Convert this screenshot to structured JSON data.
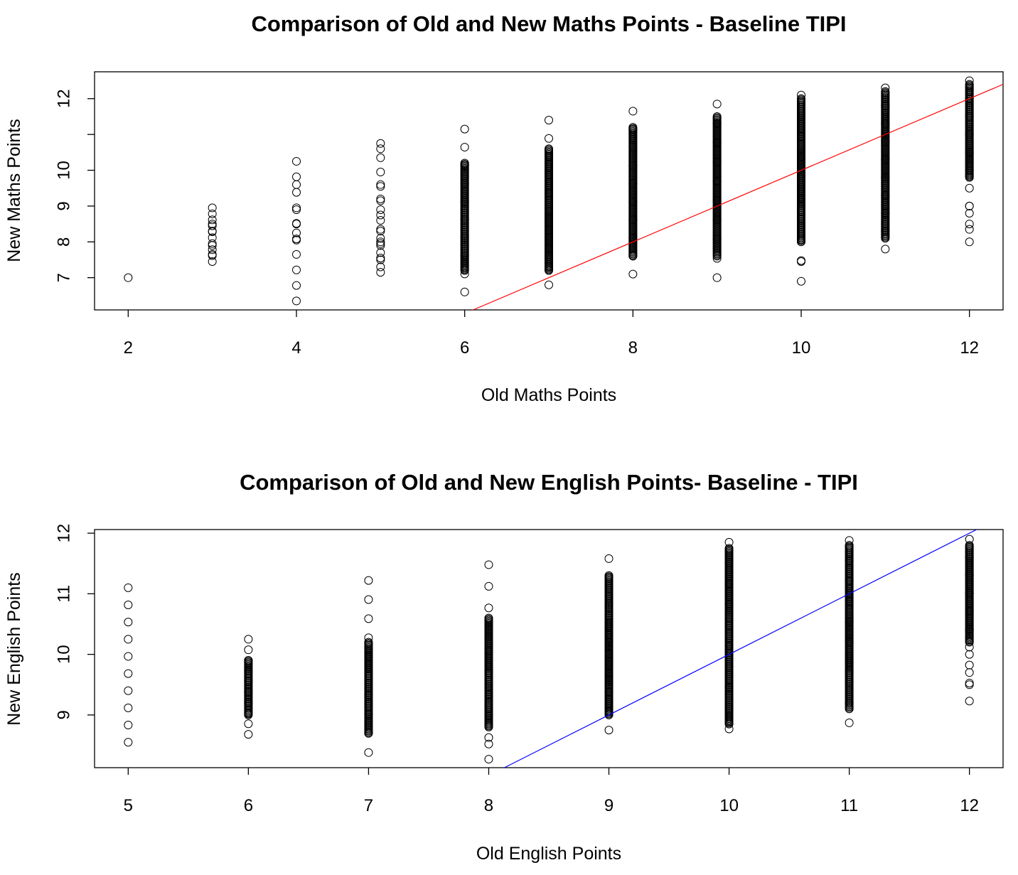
{
  "chart_data": [
    {
      "id": "maths",
      "type": "scatter",
      "title": "Comparison of Old and New Maths Points - Baseline TIPI",
      "xlabel": "Old Maths Points",
      "ylabel": "New Maths Points",
      "xlim": [
        1.6,
        12.4
      ],
      "ylim": [
        6.1,
        12.75
      ],
      "xticks": [
        2,
        4,
        6,
        8,
        10,
        12
      ],
      "yticks": [
        7,
        8,
        9,
        10,
        11,
        12
      ],
      "ytick_labels": [
        "7",
        "8",
        "9",
        "10",
        "",
        "12"
      ],
      "reference_line": {
        "slope": 1,
        "intercept": 0,
        "color": "#ff0000"
      },
      "point_color": "#000000",
      "x": [
        2,
        3,
        4,
        5,
        6,
        7,
        8,
        9,
        10,
        11,
        12
      ],
      "y_ranges": [
        [
          7.0,
          7.0
        ],
        [
          7.45,
          8.95
        ],
        [
          6.35,
          10.25
        ],
        [
          7.15,
          10.75
        ],
        [
          6.6,
          11.15
        ],
        [
          6.8,
          11.4
        ],
        [
          7.1,
          11.65
        ],
        [
          7.0,
          11.85
        ],
        [
          6.9,
          12.1
        ],
        [
          7.8,
          12.3
        ],
        [
          8.0,
          12.5
        ]
      ],
      "y_extra_points": [
        [],
        [
          8.3,
          8.5,
          7.9,
          7.65
        ],
        [
          8.05,
          8.25,
          8.5,
          8.9,
          9.6
        ],
        [
          7.3,
          7.5,
          7.7,
          7.9,
          8.0,
          8.1,
          8.3,
          8.6,
          8.9,
          9.2,
          9.6,
          10.6
        ],
        [],
        [],
        [],
        [],
        [
          7.45
        ],
        [],
        [
          8.35,
          8.8,
          9.0
        ]
      ],
      "dense_ranges": [
        [],
        [],
        [],
        [],
        [
          7.2,
          10.2
        ],
        [
          7.2,
          10.6
        ],
        [
          7.6,
          11.2
        ],
        [
          7.6,
          11.5
        ],
        [
          8.0,
          12.0
        ],
        [
          8.1,
          12.2
        ],
        [
          9.8,
          12.4
        ]
      ]
    },
    {
      "id": "english",
      "type": "scatter",
      "title": "Comparison of Old and New English Points- Baseline - TIPI",
      "xlabel": "Old English Points",
      "ylabel": "New English Points",
      "xlim": [
        4.72,
        12.28
      ],
      "ylim": [
        8.13,
        12.06
      ],
      "xticks": [
        5,
        6,
        7,
        8,
        9,
        10,
        11,
        12
      ],
      "yticks": [
        9,
        10,
        11,
        12
      ],
      "ytick_labels": [
        "9",
        "10",
        "11",
        "12"
      ],
      "reference_line": {
        "slope": 1,
        "intercept": 0,
        "color": "#0000ff"
      },
      "point_color": "#000000",
      "x": [
        5,
        6,
        7,
        8,
        9,
        10,
        11,
        12
      ],
      "y_ranges": [
        [
          8.55,
          11.1
        ],
        [
          8.68,
          10.25
        ],
        [
          8.38,
          11.22
        ],
        [
          8.27,
          11.48
        ],
        [
          8.75,
          11.58
        ],
        [
          8.77,
          11.85
        ],
        [
          8.87,
          11.88
        ],
        [
          9.23,
          11.9
        ]
      ],
      "y_extra_points": [
        [],
        [],
        [],
        [
          8.52
        ],
        [],
        [],
        [],
        [
          9.5,
          9.7,
          10.0
        ]
      ],
      "dense_ranges": [
        [],
        [
          9.0,
          9.9
        ],
        [
          8.7,
          10.2
        ],
        [
          8.8,
          10.6
        ],
        [
          9.0,
          11.3
        ],
        [
          8.85,
          11.75
        ],
        [
          9.1,
          11.8
        ],
        [
          10.2,
          11.8
        ]
      ]
    }
  ]
}
